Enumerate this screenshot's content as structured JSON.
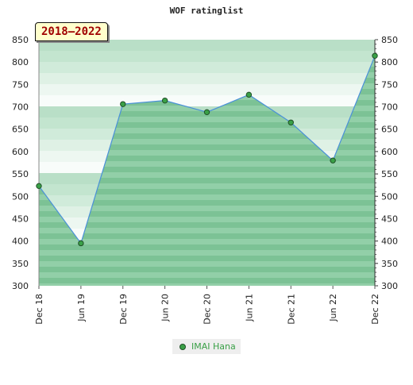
{
  "chart_data": {
    "type": "area",
    "title": "WOF ratinglist",
    "badge": "2018–2022",
    "categories": [
      "Dec 18",
      "Jun 19",
      "Dec 19",
      "Jun 20",
      "Dec 20",
      "Jun 21",
      "Dec 21",
      "Jun 22",
      "Dec 22"
    ],
    "series": [
      {
        "name": "IMAI Hana",
        "values": [
          523,
          395,
          706,
          714,
          688,
          727,
          665,
          580,
          814
        ],
        "color": "#3aa047",
        "line_color": "#4a90d9"
      }
    ],
    "ylim": [
      300,
      850
    ],
    "yticks": [
      300,
      350,
      400,
      450,
      500,
      550,
      600,
      650,
      700,
      750,
      800,
      850
    ],
    "grid": true,
    "legend_position": "bottom-center",
    "band_colors": [
      "#f3faf5",
      "#dff1e5",
      "#c5e6d0",
      "#a9dabc",
      "#92cfa8",
      "#7fc499"
    ]
  }
}
